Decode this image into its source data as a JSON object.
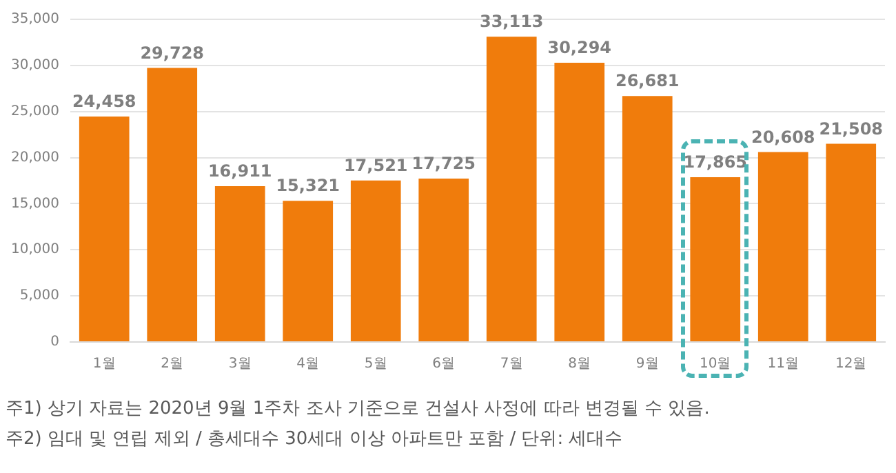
{
  "chart_data": {
    "type": "bar",
    "categories": [
      "1월",
      "2월",
      "3월",
      "4월",
      "5월",
      "6월",
      "7월",
      "8월",
      "9월",
      "10월",
      "11월",
      "12월"
    ],
    "values": [
      24458,
      29728,
      16911,
      15321,
      17521,
      17725,
      33113,
      30294,
      26681,
      17865,
      20608,
      21508
    ],
    "value_labels": [
      "24,458",
      "29,728",
      "16,911",
      "15,321",
      "17,521",
      "17,725",
      "33,113",
      "30,294",
      "26,681",
      "17,865",
      "20,608",
      "21,508"
    ],
    "color": "#f07c0c",
    "ylim": [
      0,
      35000
    ],
    "yticks": [
      0,
      {
        "value": 5000,
        "label": "5,000"
      },
      {
        "value": 10000,
        "label": "10,000"
      },
      {
        "value": 15000,
        "label": "15,000"
      },
      {
        "value": 20000,
        "label": "20,000"
      },
      {
        "value": 25000,
        "label": "25,000"
      },
      {
        "value": 30000,
        "label": "30,000"
      },
      {
        "value": 35000,
        "label": "35,000"
      }
    ],
    "grid": "y",
    "legend": false,
    "annotations": [
      "주1) 상기 자료는 2020년 9월 1주차 조사 기준으로 건설사 사정에 따라 변경될 수 있음.",
      "주2) 임대 및 연립 제외 / 총세대수 30세대 이상 아파트만 포함 / 단위: 세대수"
    ]
  }
}
